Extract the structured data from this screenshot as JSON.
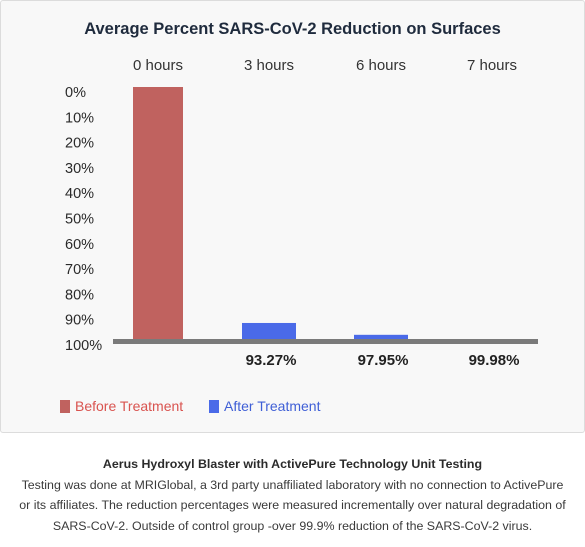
{
  "chart_data": {
    "type": "bar",
    "title": "Average Percent SARS-CoV-2 Reduction on Surfaces",
    "categories": [
      "0 hours",
      "3 hours",
      "6 hours",
      "7 hours"
    ],
    "y_axis": {
      "ticks": [
        "0%",
        "10%",
        "20%",
        "30%",
        "40%",
        "50%",
        "60%",
        "70%",
        "80%",
        "90%",
        "100%"
      ],
      "inverted": true,
      "ylim": [
        0,
        100
      ]
    },
    "series": [
      {
        "name": "Before Treatment",
        "color": "#c0625f",
        "values": [
          0,
          null,
          null,
          null
        ]
      },
      {
        "name": "After Treatment",
        "color": "#4a6ae8",
        "values": [
          null,
          93.27,
          97.95,
          99.98
        ]
      }
    ],
    "value_labels": [
      "",
      "93.27%",
      "97.95%",
      "99.98%"
    ],
    "legend": [
      {
        "label": "Before Treatment",
        "color": "#c0625f",
        "text_color": "#d9534f"
      },
      {
        "label": "After Treatment",
        "color": "#4a6ae8",
        "text_color": "#3f5fd6"
      }
    ],
    "legend_position": "bottom-left",
    "grid": false
  },
  "caption": {
    "title": "Aerus Hydroxyl Blaster with ActivePure Technology Unit Testing",
    "body": "Testing was done at MRIGlobal, a 3rd party unaffiliated laboratory with no connection to ActivePure or its affiliates. The reduction percentages were measured incrementally over natural degradation of SARS-CoV-2. Outside of control group -over 99.9% reduction of the SARS-CoV-2 virus."
  }
}
